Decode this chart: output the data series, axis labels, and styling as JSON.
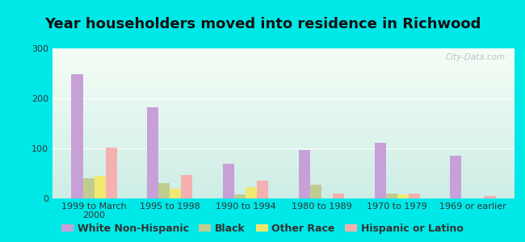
{
  "title": "Year householders moved into residence in Richwood",
  "categories": [
    "1999 to March\n2000",
    "1995 to 1998",
    "1990 to 1994",
    "1980 to 1989",
    "1970 to 1979",
    "1969 or earlier"
  ],
  "series": {
    "White Non-Hispanic": [
      248,
      182,
      70,
      96,
      111,
      85
    ],
    "Black": [
      40,
      30,
      8,
      27,
      10,
      0
    ],
    "Other Race": [
      45,
      20,
      22,
      0,
      8,
      0
    ],
    "Hispanic or Latino": [
      102,
      47,
      36,
      10,
      10,
      5
    ]
  },
  "colors": {
    "White Non-Hispanic": "#c8a0d8",
    "Black": "#c0cc90",
    "Other Race": "#f0e870",
    "Hispanic or Latino": "#f5b0b0"
  },
  "ylim": [
    0,
    300
  ],
  "yticks": [
    0,
    100,
    200,
    300
  ],
  "background_outer": "#00e8e8",
  "bar_width": 0.15,
  "title_fontsize": 13,
  "tick_fontsize": 8,
  "legend_fontsize": 9,
  "watermark": "City-Data.com"
}
